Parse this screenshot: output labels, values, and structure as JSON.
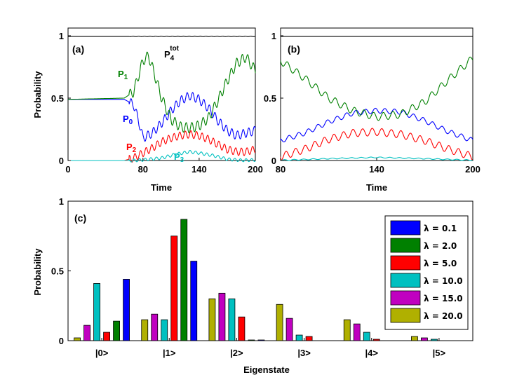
{
  "chart_data": [
    {
      "panel": "(a)",
      "type": "line",
      "xlabel": "Time",
      "ylabel": "Probability",
      "xlim": [
        0,
        200
      ],
      "ylim": [
        0,
        1
      ],
      "xticks": [
        "0",
        "80",
        "140",
        "200"
      ],
      "yticks": [
        "0",
        "0.5",
        "1"
      ],
      "annotations": {
        "p1": "P",
        "p1sub": "1",
        "p0": "P",
        "p0sub": "0",
        "p2": "P",
        "p2sub": "2",
        "p3": "P",
        "p3sub": "3",
        "ptot": "P",
        "ptotsub": "4",
        "ptotsup": "tot"
      },
      "series": [
        {
          "name": "P0",
          "color": "#0000ff",
          "points": [
            [
              0,
              0.49
            ],
            [
              60,
              0.49
            ],
            [
              70,
              0.45
            ],
            [
              76,
              0.3
            ],
            [
              80,
              0.18
            ],
            [
              90,
              0.22
            ],
            [
              100,
              0.3
            ],
            [
              110,
              0.4
            ],
            [
              120,
              0.48
            ],
            [
              130,
              0.52
            ],
            [
              140,
              0.49
            ],
            [
              150,
              0.42
            ],
            [
              160,
              0.32
            ],
            [
              170,
              0.24
            ],
            [
              180,
              0.2
            ],
            [
              190,
              0.22
            ],
            [
              200,
              0.24
            ]
          ],
          "osc": 0.035
        },
        {
          "name": "P1",
          "color": "#008000",
          "points": [
            [
              0,
              0.49
            ],
            [
              60,
              0.5
            ],
            [
              70,
              0.55
            ],
            [
              76,
              0.7
            ],
            [
              80,
              0.8
            ],
            [
              86,
              0.84
            ],
            [
              92,
              0.7
            ],
            [
              100,
              0.5
            ],
            [
              110,
              0.33
            ],
            [
              120,
              0.27
            ],
            [
              130,
              0.26
            ],
            [
              140,
              0.28
            ],
            [
              150,
              0.34
            ],
            [
              160,
              0.48
            ],
            [
              170,
              0.64
            ],
            [
              180,
              0.78
            ],
            [
              190,
              0.83
            ],
            [
              200,
              0.72
            ]
          ],
          "osc": 0.04
        },
        {
          "name": "P2",
          "color": "#ff0000",
          "points": [
            [
              0,
              0
            ],
            [
              60,
              0
            ],
            [
              70,
              0.02
            ],
            [
              80,
              0.06
            ],
            [
              90,
              0.1
            ],
            [
              100,
              0.15
            ],
            [
              110,
              0.18
            ],
            [
              120,
              0.2
            ],
            [
              130,
              0.21
            ],
            [
              140,
              0.2
            ],
            [
              150,
              0.17
            ],
            [
              160,
              0.13
            ],
            [
              170,
              0.09
            ],
            [
              180,
              0.07
            ],
            [
              190,
              0.07
            ],
            [
              200,
              0.09
            ]
          ],
          "osc": 0.03
        },
        {
          "name": "P3",
          "color": "#00c0c0",
          "points": [
            [
              0,
              0
            ],
            [
              70,
              0
            ],
            [
              80,
              0.005
            ],
            [
              100,
              0.02
            ],
            [
              115,
              0.05
            ],
            [
              130,
              0.07
            ],
            [
              140,
              0.06
            ],
            [
              155,
              0.04
            ],
            [
              170,
              0.01
            ],
            [
              185,
              0.002
            ],
            [
              200,
              0.004
            ]
          ],
          "osc": 0.012
        },
        {
          "name": "P4tot",
          "color": "#000000",
          "points": [
            [
              0,
              0.995
            ],
            [
              200,
              0.995
            ]
          ],
          "osc": 0.002
        }
      ]
    },
    {
      "panel": "(b)",
      "type": "line",
      "xlabel": "Time",
      "ylabel": "",
      "xlim": [
        80,
        200
      ],
      "ylim": [
        0,
        1
      ],
      "xticks": [
        "80",
        "140",
        "200"
      ],
      "yticks": [
        "0",
        "0.5",
        "1"
      ],
      "series": [
        {
          "name": "P0",
          "color": "#0000ff",
          "points": [
            [
              80,
              0.16
            ],
            [
              95,
              0.22
            ],
            [
              110,
              0.31
            ],
            [
              125,
              0.38
            ],
            [
              140,
              0.4
            ],
            [
              155,
              0.39
            ],
            [
              170,
              0.32
            ],
            [
              185,
              0.23
            ],
            [
              200,
              0.16
            ]
          ],
          "osc": 0.02
        },
        {
          "name": "P1",
          "color": "#008000",
          "points": [
            [
              80,
              0.8
            ],
            [
              95,
              0.66
            ],
            [
              110,
              0.5
            ],
            [
              125,
              0.4
            ],
            [
              140,
              0.35
            ],
            [
              155,
              0.37
            ],
            [
              170,
              0.47
            ],
            [
              185,
              0.65
            ],
            [
              200,
              0.82
            ]
          ],
          "osc": 0.03
        },
        {
          "name": "P2",
          "color": "#ff0000",
          "points": [
            [
              80,
              0.03
            ],
            [
              95,
              0.09
            ],
            [
              110,
              0.17
            ],
            [
              125,
              0.22
            ],
            [
              140,
              0.23
            ],
            [
              155,
              0.21
            ],
            [
              170,
              0.16
            ],
            [
              185,
              0.09
            ],
            [
              200,
              0.03
            ]
          ],
          "osc": 0.03
        },
        {
          "name": "P3",
          "color": "#00c0c0",
          "points": [
            [
              80,
              0.002
            ],
            [
              110,
              0.015
            ],
            [
              140,
              0.025
            ],
            [
              170,
              0.015
            ],
            [
              200,
              0.002
            ]
          ],
          "osc": 0.004
        },
        {
          "name": "P4tot",
          "color": "#000000",
          "points": [
            [
              80,
              0.995
            ],
            [
              200,
              0.995
            ]
          ],
          "osc": 0
        }
      ]
    },
    {
      "panel": "(c)",
      "type": "bar",
      "xlabel": "Eigenstate",
      "ylabel": "Probability",
      "ylim": [
        0,
        1
      ],
      "yticks": [
        "0",
        "0.5",
        "1"
      ],
      "categories": [
        "|0>",
        "|1>",
        "|2>",
        "|3>",
        "|4>",
        "|5>"
      ],
      "series": [
        {
          "name": "λ = 20.0",
          "color": "#b0b000",
          "values": [
            0.02,
            0.15,
            0.3,
            0.26,
            0.15,
            0.03
          ]
        },
        {
          "name": "λ = 15.0",
          "color": "#c000c0",
          "values": [
            0.11,
            0.19,
            0.34,
            0.16,
            0.12,
            0.02
          ]
        },
        {
          "name": "λ = 10.0",
          "color": "#00c0c0",
          "values": [
            0.41,
            0.15,
            0.3,
            0.04,
            0.06,
            0.01
          ]
        },
        {
          "name": "λ = 5.0",
          "color": "#ff0000",
          "values": [
            0.06,
            0.75,
            0.17,
            0.03,
            0.01,
            0.0
          ]
        },
        {
          "name": "λ = 2.0",
          "color": "#008000",
          "values": [
            0.14,
            0.87,
            0.005,
            0.0,
            0.0,
            0.0
          ]
        },
        {
          "name": "λ = 0.1",
          "color": "#0000ff",
          "values": [
            0.44,
            0.57,
            0.005,
            0.0,
            0.0,
            0.0
          ]
        }
      ],
      "legend": [
        "λ = 0.1",
        "λ = 2.0",
        "λ = 5.0",
        "λ = 10.0",
        "λ = 15.0",
        "λ = 20.0"
      ],
      "legend_colors": [
        "#0000ff",
        "#008000",
        "#ff0000",
        "#00c0c0",
        "#c000c0",
        "#b0b000"
      ],
      "legend_position": "top-right"
    }
  ]
}
